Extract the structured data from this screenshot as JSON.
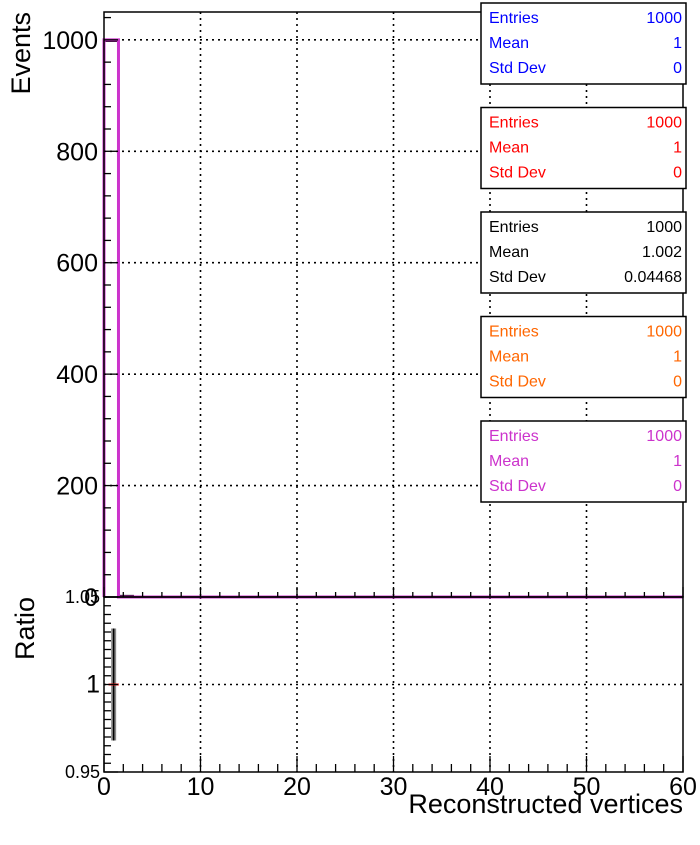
{
  "chart_data": {
    "type": "bar",
    "top_panel": {
      "ylabel": "Events",
      "xlim": [
        0,
        60
      ],
      "ylim": [
        0,
        1050
      ],
      "y_ticks": [
        {
          "value": 0,
          "label": "0"
        },
        {
          "value": 200,
          "label": "200"
        },
        {
          "value": 400,
          "label": "400"
        },
        {
          "value": 600,
          "label": "600"
        },
        {
          "value": 800,
          "label": "800"
        },
        {
          "value": 1000,
          "label": "1000"
        }
      ],
      "grid": true,
      "series": [
        {
          "color": "#0000ff",
          "bins": [
            {
              "x_low": 0,
              "x_high": 1.5,
              "value": 1000
            }
          ]
        },
        {
          "color": "#ff0000",
          "bins": [
            {
              "x_low": 0,
              "x_high": 1.5,
              "value": 1000
            }
          ]
        },
        {
          "color": "#000000",
          "bins": [
            {
              "x_low": 0,
              "x_high": 1.5,
              "value": 998
            },
            {
              "x_low": 1.5,
              "x_high": 3,
              "value": 2
            }
          ]
        },
        {
          "color": "#ff6600",
          "bins": [
            {
              "x_low": 0,
              "x_high": 1.5,
              "value": 1000
            }
          ]
        },
        {
          "color": "#cc33cc",
          "bins": [
            {
              "x_low": 0,
              "x_high": 1.5,
              "value": 1000
            }
          ]
        }
      ],
      "stat_boxes": [
        {
          "color": "#0000ff",
          "rows": [
            {
              "k": "Entries",
              "v": "1000"
            },
            {
              "k": "Mean",
              "v": "1"
            },
            {
              "k": "Std Dev",
              "v": "0"
            }
          ]
        },
        {
          "color": "#ff0000",
          "rows": [
            {
              "k": "Entries",
              "v": "1000"
            },
            {
              "k": "Mean",
              "v": "1"
            },
            {
              "k": "Std Dev",
              "v": "0"
            }
          ]
        },
        {
          "color": "#000000",
          "rows": [
            {
              "k": "Entries",
              "v": "1000"
            },
            {
              "k": "Mean",
              "v": "1.002"
            },
            {
              "k": "Std Dev",
              "v": "0.04468"
            }
          ]
        },
        {
          "color": "#ff6600",
          "rows": [
            {
              "k": "Entries",
              "v": "1000"
            },
            {
              "k": "Mean",
              "v": "1"
            },
            {
              "k": "Std Dev",
              "v": "0"
            }
          ]
        },
        {
          "color": "#cc33cc",
          "rows": [
            {
              "k": "Entries",
              "v": "1000"
            },
            {
              "k": "Mean",
              "v": "1"
            },
            {
              "k": "Std Dev",
              "v": "0"
            }
          ]
        }
      ]
    },
    "bottom_panel": {
      "ylabel": "Ratio",
      "xlabel": "Reconstructed vertices",
      "xlim": [
        0,
        60
      ],
      "ylim": [
        0.95,
        1.05
      ],
      "y_ticks": [
        {
          "value": 0.95,
          "label": "0.95"
        },
        {
          "value": 1.0,
          "label": "1"
        },
        {
          "value": 1.05,
          "label": "1.05"
        }
      ],
      "x_ticks": [
        {
          "value": 0,
          "label": "0"
        },
        {
          "value": 10,
          "label": "10"
        },
        {
          "value": 20,
          "label": "20"
        },
        {
          "value": 30,
          "label": "30"
        },
        {
          "value": 40,
          "label": "40"
        },
        {
          "value": 50,
          "label": "50"
        },
        {
          "value": 60,
          "label": "60"
        }
      ],
      "grid": true,
      "ratio_points": [
        {
          "x": 1,
          "y": 1.0,
          "err": 0.032,
          "color": "#000000"
        },
        {
          "x": 1,
          "y": 1.0,
          "err": 0.0,
          "color": "#ff0000"
        }
      ]
    }
  }
}
